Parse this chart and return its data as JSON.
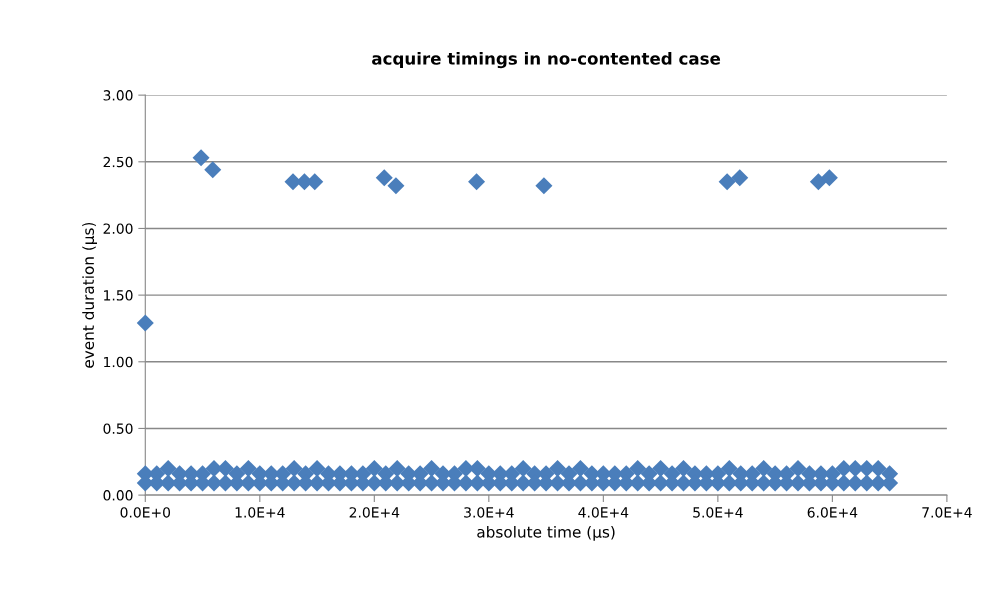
{
  "chart_data": {
    "type": "scatter",
    "title": "acquire timings in no-contented case",
    "xlabel": "absolute time (µs)",
    "ylabel": "event duration (µs)",
    "xlim": [
      0,
      70000
    ],
    "xticks": [
      {
        "value": 0,
        "label": "0.0E+0"
      },
      {
        "value": 10000,
        "label": "1.0E+4"
      },
      {
        "value": 20000,
        "label": "2.0E+4"
      },
      {
        "value": 30000,
        "label": "3.0E+4"
      },
      {
        "value": 40000,
        "label": "4.0E+4"
      },
      {
        "value": 50000,
        "label": "5.0E+4"
      },
      {
        "value": 60000,
        "label": "6.0E+4"
      },
      {
        "value": 70000,
        "label": "7.0E+4"
      }
    ],
    "ylim": [
      0,
      3
    ],
    "yticks": [
      {
        "value": 0,
        "label": "0.00"
      },
      {
        "value": 0.5,
        "label": "0.50"
      },
      {
        "value": 1,
        "label": "1.00"
      },
      {
        "value": 1.5,
        "label": "1.50"
      },
      {
        "value": 2,
        "label": "2.00"
      },
      {
        "value": 2.5,
        "label": "2.50"
      },
      {
        "value": 3,
        "label": "3.00"
      }
    ],
    "grid": "y",
    "marker": "diamond",
    "legend": false,
    "series": [
      {
        "color": "#4a7ebb",
        "x": [
          0,
          4870,
          5890,
          12900,
          13900,
          14800,
          20870,
          21890,
          28930,
          34810,
          50810,
          51910,
          58780,
          59740
        ],
        "values": [
          1.29,
          2.53,
          2.44,
          2.35,
          2.35,
          2.35,
          2.38,
          2.32,
          2.35,
          2.32,
          2.35,
          2.38,
          2.35,
          2.38
        ]
      },
      {
        "color": "#4a7ebb",
        "x": [
          0,
          1000,
          2000,
          3000,
          4000,
          5000,
          6000,
          7000,
          8000,
          9000,
          10000,
          11000,
          12000,
          13000,
          14000,
          15000,
          16000,
          17000,
          18000,
          19000,
          20000,
          21000,
          22000,
          23000,
          24000,
          25000,
          26000,
          27000,
          28000,
          29000,
          30000,
          31000,
          32000,
          33000,
          34000,
          35000,
          36000,
          37000,
          38000,
          39000,
          40000,
          41000,
          42000,
          43000,
          44000,
          45000,
          46000,
          47000,
          48000,
          49000,
          50000,
          51000,
          52000,
          53000,
          54000,
          55000,
          56000,
          57000,
          58000,
          59000,
          60000,
          61000,
          62000,
          63000,
          64000,
          65000
        ],
        "values": [
          0.16,
          0.16,
          0.2,
          0.16,
          0.16,
          0.16,
          0.2,
          0.2,
          0.16,
          0.2,
          0.16,
          0.16,
          0.16,
          0.2,
          0.16,
          0.2,
          0.16,
          0.16,
          0.16,
          0.16,
          0.2,
          0.16,
          0.2,
          0.16,
          0.16,
          0.2,
          0.16,
          0.16,
          0.2,
          0.2,
          0.16,
          0.16,
          0.16,
          0.2,
          0.16,
          0.16,
          0.2,
          0.16,
          0.2,
          0.16,
          0.16,
          0.16,
          0.16,
          0.2,
          0.16,
          0.2,
          0.16,
          0.2,
          0.16,
          0.16,
          0.16,
          0.2,
          0.16,
          0.16,
          0.2,
          0.16,
          0.16,
          0.2,
          0.16,
          0.16,
          0.16,
          0.2,
          0.2,
          0.2,
          0.2,
          0.16
        ]
      },
      {
        "color": "#4a7ebb",
        "x": [
          0,
          1000,
          2000,
          3000,
          4000,
          5000,
          6000,
          7000,
          8000,
          9000,
          10000,
          11000,
          12000,
          13000,
          14000,
          15000,
          16000,
          17000,
          18000,
          19000,
          20000,
          21000,
          22000,
          23000,
          24000,
          25000,
          26000,
          27000,
          28000,
          29000,
          30000,
          31000,
          32000,
          33000,
          34000,
          35000,
          36000,
          37000,
          38000,
          39000,
          40000,
          41000,
          42000,
          43000,
          44000,
          45000,
          46000,
          47000,
          48000,
          49000,
          50000,
          51000,
          52000,
          53000,
          54000,
          55000,
          56000,
          57000,
          58000,
          59000,
          60000,
          61000,
          62000,
          63000,
          64000,
          65000
        ],
        "values": [
          0.09,
          0.09,
          0.09,
          0.09,
          0.09,
          0.09,
          0.09,
          0.09,
          0.09,
          0.09,
          0.09,
          0.09,
          0.09,
          0.09,
          0.09,
          0.09,
          0.09,
          0.09,
          0.09,
          0.09,
          0.09,
          0.09,
          0.09,
          0.09,
          0.09,
          0.09,
          0.09,
          0.09,
          0.09,
          0.09,
          0.09,
          0.09,
          0.09,
          0.09,
          0.09,
          0.09,
          0.09,
          0.09,
          0.09,
          0.09,
          0.09,
          0.09,
          0.09,
          0.09,
          0.09,
          0.09,
          0.09,
          0.09,
          0.09,
          0.09,
          0.09,
          0.09,
          0.09,
          0.09,
          0.09,
          0.09,
          0.09,
          0.09,
          0.09,
          0.09,
          0.09,
          0.09,
          0.09,
          0.09,
          0.09,
          0.09
        ]
      }
    ]
  }
}
